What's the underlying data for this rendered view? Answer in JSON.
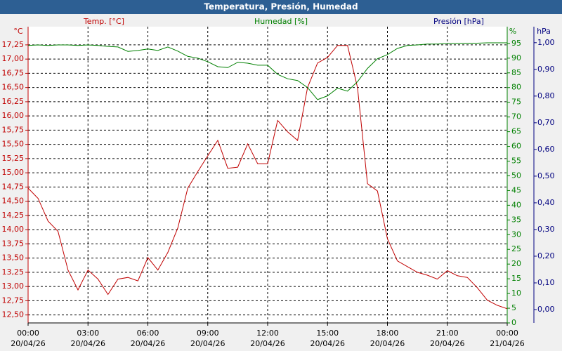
{
  "chart_data": {
    "type": "line",
    "title": "Temperatura, Presión, Humedad",
    "ylabel": "°C",
    "y2label": "%",
    "y3label": "hPa",
    "y3_title": "Presión [hPa]",
    "y3_color": "#000080",
    "x": [
      0,
      0.5,
      1,
      1.5,
      2,
      2.5,
      3,
      3.5,
      4,
      4.5,
      5,
      5.5,
      6,
      6.5,
      7,
      7.5,
      8,
      8.5,
      9,
      9.5,
      10,
      10.5,
      11,
      11.5,
      12,
      12.5,
      13,
      13.5,
      14,
      14.5,
      15,
      15.5,
      16,
      16.5,
      17,
      17.5,
      18,
      18.5,
      19,
      19.5,
      20,
      20.5,
      21,
      21.5,
      22,
      22.5,
      23,
      23.5,
      24
    ],
    "xlim": [
      0,
      24
    ],
    "xticks": [
      {
        "value": 0,
        "label": [
          "00:00",
          "20/04/26"
        ]
      },
      {
        "value": 3,
        "label": [
          "03:00",
          "20/04/26"
        ]
      },
      {
        "value": 6,
        "label": [
          "06:00",
          "20/04/26"
        ]
      },
      {
        "value": 9,
        "label": [
          "09:00",
          "20/04/26"
        ]
      },
      {
        "value": 12,
        "label": [
          "12:00",
          "20/04/26"
        ]
      },
      {
        "value": 15,
        "label": [
          "15:00",
          "20/04/26"
        ]
      },
      {
        "value": 18,
        "label": [
          "18:00",
          "20/04/26"
        ]
      },
      {
        "value": 21,
        "label": [
          "21:00",
          "20/04/26"
        ]
      },
      {
        "value": 24,
        "label": [
          "00:00",
          "21/04/26"
        ]
      }
    ],
    "ylim": [
      12.36,
      17.57
    ],
    "yticks": [
      {
        "value": 12.5,
        "label": "12,50"
      },
      {
        "value": 12.75,
        "label": "12,75"
      },
      {
        "value": 13,
        "label": "13,00"
      },
      {
        "value": 13.25,
        "label": "13,25"
      },
      {
        "value": 13.5,
        "label": "13,50"
      },
      {
        "value": 13.75,
        "label": "13,75"
      },
      {
        "value": 14,
        "label": "14,00"
      },
      {
        "value": 14.25,
        "label": "14,25"
      },
      {
        "value": 14.5,
        "label": "14,50"
      },
      {
        "value": 14.75,
        "label": "14,75"
      },
      {
        "value": 15,
        "label": "15,00"
      },
      {
        "value": 15.25,
        "label": "15,25"
      },
      {
        "value": 15.5,
        "label": "15,50"
      },
      {
        "value": 15.75,
        "label": "15,75"
      },
      {
        "value": 16,
        "label": "16,00"
      },
      {
        "value": 16.25,
        "label": "16,25"
      },
      {
        "value": 16.5,
        "label": "16,50"
      },
      {
        "value": 16.75,
        "label": "16,75"
      },
      {
        "value": 17,
        "label": "17,00"
      },
      {
        "value": 17.25,
        "label": "17,25"
      }
    ],
    "y2lim": [
      0,
      100.7
    ],
    "y2ticks": [
      0,
      5,
      10,
      15,
      20,
      25,
      30,
      35,
      40,
      45,
      50,
      55,
      60,
      65,
      70,
      75,
      80,
      85,
      90,
      95
    ],
    "y3lim": [
      -0.05,
      1.06
    ],
    "y3ticks": [
      {
        "value": 0,
        "label": "0,00"
      },
      {
        "value": 0.1,
        "label": "0,10"
      },
      {
        "value": 0.2,
        "label": "0,20"
      },
      {
        "value": 0.3,
        "label": "0,30"
      },
      {
        "value": 0.4,
        "label": "0,40"
      },
      {
        "value": 0.5,
        "label": "0,50"
      },
      {
        "value": 0.6,
        "label": "0,60"
      },
      {
        "value": 0.7,
        "label": "0,70"
      },
      {
        "value": 0.8,
        "label": "0,80"
      },
      {
        "value": 0.9,
        "label": "0,90"
      },
      {
        "value": 1,
        "label": "1,00"
      }
    ],
    "grid": true,
    "series": [
      {
        "name": "Temp. [°C]",
        "color": "#c00000",
        "values": [
          14.73,
          14.55,
          14.15,
          13.97,
          13.29,
          12.94,
          13.29,
          13.13,
          12.86,
          13.13,
          13.16,
          13.1,
          13.51,
          13.29,
          13.6,
          14.03,
          14.73,
          15.02,
          15.3,
          15.57,
          15.08,
          15.1,
          15.51,
          15.16,
          15.16,
          15.92,
          15.72,
          15.57,
          16.5,
          16.93,
          17.03,
          17.24,
          17.24,
          16.5,
          14.81,
          14.68,
          13.84,
          13.45,
          13.35,
          13.25,
          13.2,
          13.13,
          13.28,
          13.19,
          13.16,
          12.98,
          12.76,
          12.67,
          12.61
        ]
      },
      {
        "name": "Humedad [%]",
        "color": "#008000",
        "axis": "y2",
        "values": [
          94.3,
          94.5,
          94.3,
          94.5,
          94.5,
          94.3,
          94.5,
          94.3,
          94.0,
          93.8,
          92.3,
          92.6,
          93.1,
          92.6,
          93.8,
          92.4,
          90.6,
          90.0,
          88.8,
          87.1,
          86.8,
          88.6,
          88.3,
          87.6,
          87.6,
          84.5,
          83.0,
          82.4,
          80.0,
          75.9,
          77.2,
          79.8,
          78.8,
          82.0,
          86.5,
          89.8,
          91.2,
          93.3,
          94.3,
          94.5,
          94.8,
          94.8,
          95.0,
          95.0,
          95.1,
          95.1,
          95.2,
          95.2,
          95.2
        ]
      }
    ]
  }
}
